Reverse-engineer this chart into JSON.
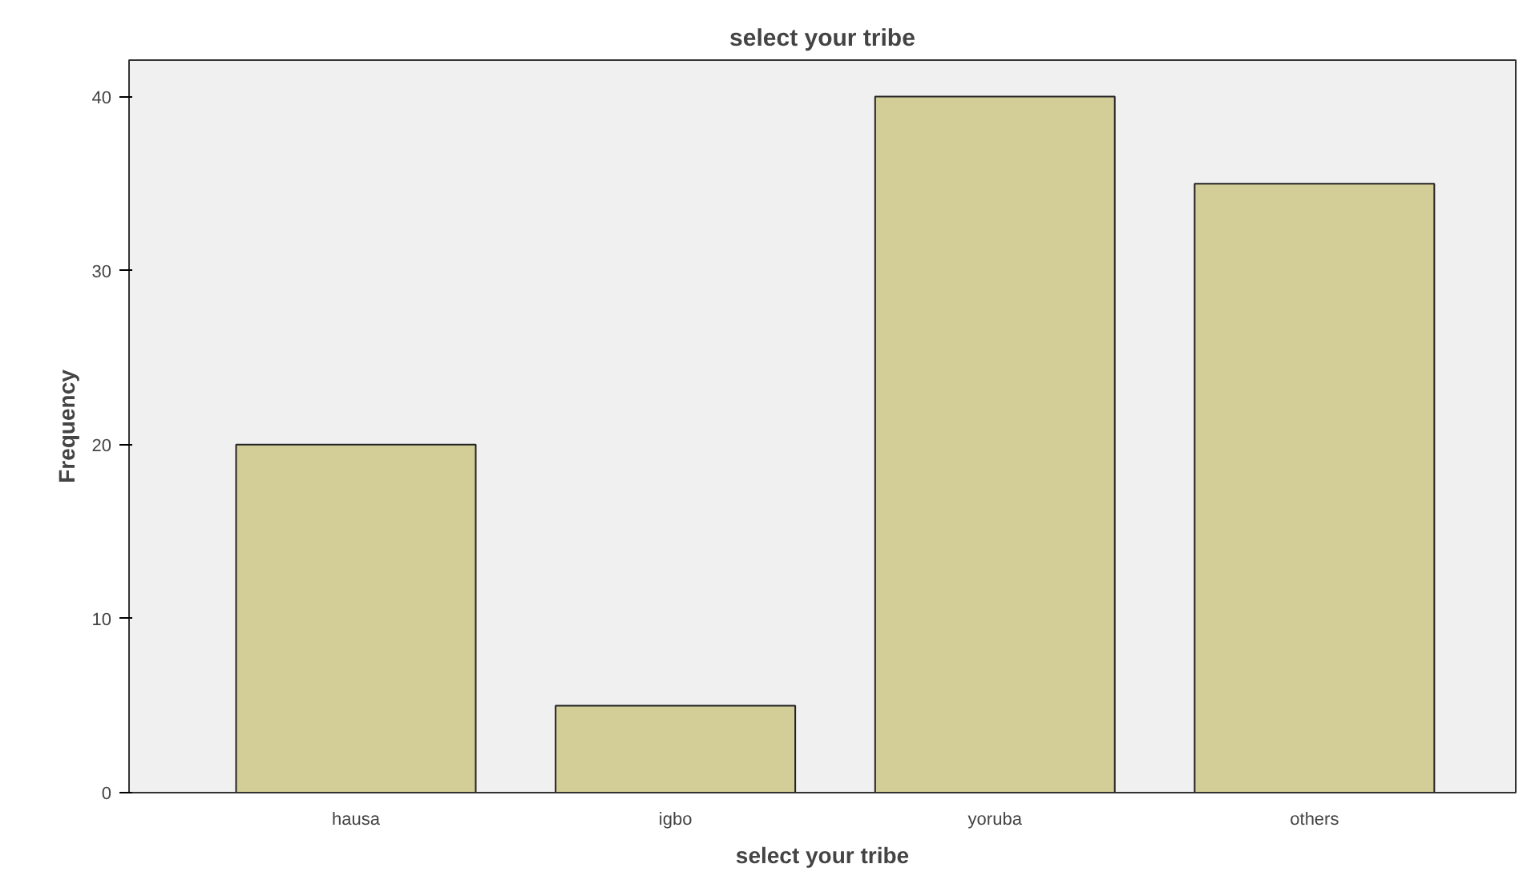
{
  "chart_data": {
    "type": "bar",
    "title": "select your tribe",
    "xlabel": "select your tribe",
    "ylabel": "Frequency",
    "categories": [
      "hausa",
      "igbo",
      "yoruba",
      "others"
    ],
    "values": [
      20,
      5,
      40,
      35
    ],
    "color": "#d3ce97",
    "ylim": [
      0,
      42.1
    ],
    "yticks": [
      0,
      10,
      20,
      30,
      40
    ],
    "grid": false
  }
}
